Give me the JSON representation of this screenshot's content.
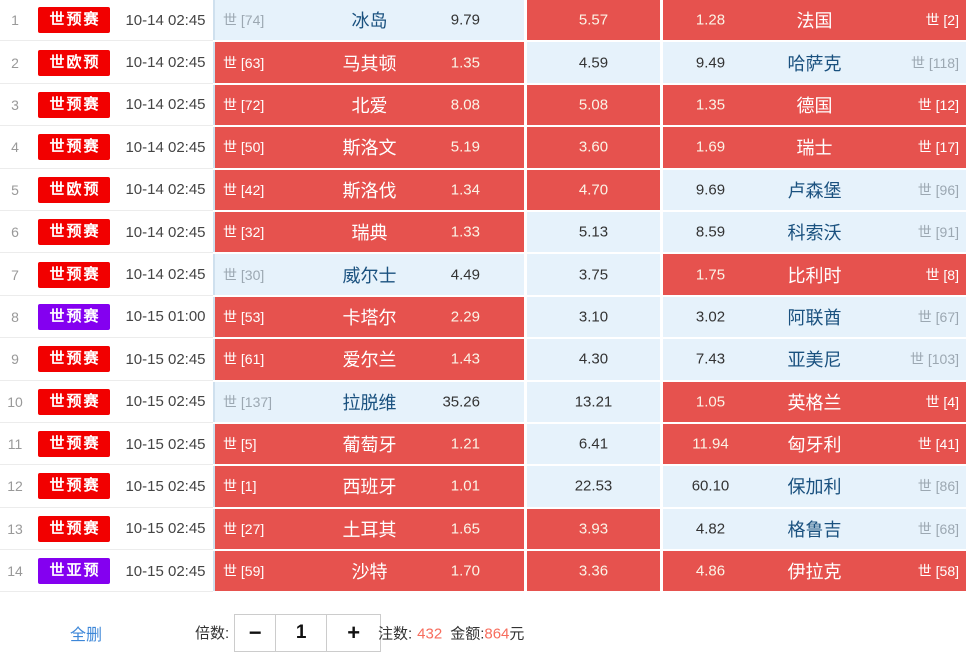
{
  "ui_colors": {
    "selected_cell_red": "#e6524e",
    "unselected_cell_blue": "#e6f2fb",
    "league_badge_red": "#f20000",
    "league_badge_purple": "#8400f0",
    "team_name_blue": "#1a517f",
    "rank_gray": "#9ca8b2",
    "summary_highlight_red": "#f76c5c",
    "link_blue": "#3d87d8"
  },
  "table": {
    "rows": [
      {
        "num": "1",
        "league": "世预赛",
        "time": "10-14 02:45",
        "home": {
          "rank": "世 [74]",
          "team": "冰岛",
          "odds": "9.79",
          "selected": false
        },
        "draw": {
          "odds": "5.57",
          "selected": true
        },
        "away": {
          "odds": "1.28",
          "team": "法国",
          "rank": "世 [2]",
          "selected": true
        }
      },
      {
        "num": "2",
        "league": "世欧预",
        "time": "10-14 02:45",
        "home": {
          "rank": "世 [63]",
          "team": "马其顿",
          "odds": "1.35",
          "selected": true
        },
        "draw": {
          "odds": "4.59",
          "selected": false
        },
        "away": {
          "odds": "9.49",
          "team": "哈萨克",
          "rank": "世 [118]",
          "selected": false
        }
      },
      {
        "num": "3",
        "league": "世预赛",
        "time": "10-14 02:45",
        "home": {
          "rank": "世 [72]",
          "team": "北爱",
          "odds": "8.08",
          "selected": true
        },
        "draw": {
          "odds": "5.08",
          "selected": true
        },
        "away": {
          "odds": "1.35",
          "team": "德国",
          "rank": "世 [12]",
          "selected": true
        }
      },
      {
        "num": "4",
        "league": "世预赛",
        "time": "10-14 02:45",
        "home": {
          "rank": "世 [50]",
          "team": "斯洛文",
          "odds": "5.19",
          "selected": true
        },
        "draw": {
          "odds": "3.60",
          "selected": true
        },
        "away": {
          "odds": "1.69",
          "team": "瑞士",
          "rank": "世 [17]",
          "selected": true
        }
      },
      {
        "num": "5",
        "league": "世欧预",
        "time": "10-14 02:45",
        "home": {
          "rank": "世 [42]",
          "team": "斯洛伐",
          "odds": "1.34",
          "selected": true
        },
        "draw": {
          "odds": "4.70",
          "selected": true
        },
        "away": {
          "odds": "9.69",
          "team": "卢森堡",
          "rank": "世 [96]",
          "selected": false
        }
      },
      {
        "num": "6",
        "league": "世预赛",
        "time": "10-14 02:45",
        "home": {
          "rank": "世 [32]",
          "team": "瑞典",
          "odds": "1.33",
          "selected": true
        },
        "draw": {
          "odds": "5.13",
          "selected": false
        },
        "away": {
          "odds": "8.59",
          "team": "科索沃",
          "rank": "世 [91]",
          "selected": false
        }
      },
      {
        "num": "7",
        "league": "世预赛",
        "time": "10-14 02:45",
        "home": {
          "rank": "世 [30]",
          "team": "威尔士",
          "odds": "4.49",
          "selected": false
        },
        "draw": {
          "odds": "3.75",
          "selected": false
        },
        "away": {
          "odds": "1.75",
          "team": "比利时",
          "rank": "世 [8]",
          "selected": true
        }
      },
      {
        "num": "8",
        "league": "世预赛",
        "league_purple": true,
        "time": "10-15 01:00",
        "home": {
          "rank": "世 [53]",
          "team": "卡塔尔",
          "odds": "2.29",
          "selected": true
        },
        "draw": {
          "odds": "3.10",
          "selected": false
        },
        "away": {
          "odds": "3.02",
          "team": "阿联酋",
          "rank": "世 [67]",
          "selected": false
        }
      },
      {
        "num": "9",
        "league": "世预赛",
        "time": "10-15 02:45",
        "home": {
          "rank": "世 [61]",
          "team": "爱尔兰",
          "odds": "1.43",
          "selected": true
        },
        "draw": {
          "odds": "4.30",
          "selected": false
        },
        "away": {
          "odds": "7.43",
          "team": "亚美尼",
          "rank": "世 [103]",
          "selected": false
        }
      },
      {
        "num": "10",
        "league": "世预赛",
        "time": "10-15 02:45",
        "home": {
          "rank": "世 [137]",
          "team": "拉脱维",
          "odds": "35.26",
          "selected": false
        },
        "draw": {
          "odds": "13.21",
          "selected": false
        },
        "away": {
          "odds": "1.05",
          "team": "英格兰",
          "rank": "世 [4]",
          "selected": true
        }
      },
      {
        "num": "11",
        "league": "世预赛",
        "time": "10-15 02:45",
        "home": {
          "rank": "世 [5]",
          "team": "葡萄牙",
          "odds": "1.21",
          "selected": true
        },
        "draw": {
          "odds": "6.41",
          "selected": false
        },
        "away": {
          "odds": "11.94",
          "team": "匈牙利",
          "rank": "世 [41]",
          "selected": true
        }
      },
      {
        "num": "12",
        "league": "世预赛",
        "time": "10-15 02:45",
        "home": {
          "rank": "世 [1]",
          "team": "西班牙",
          "odds": "1.01",
          "selected": true
        },
        "draw": {
          "odds": "22.53",
          "selected": false
        },
        "away": {
          "odds": "60.10",
          "team": "保加利",
          "rank": "世 [86]",
          "selected": false
        }
      },
      {
        "num": "13",
        "league": "世预赛",
        "time": "10-15 02:45",
        "home": {
          "rank": "世 [27]",
          "team": "土耳其",
          "odds": "1.65",
          "selected": true
        },
        "draw": {
          "odds": "3.93",
          "selected": true
        },
        "away": {
          "odds": "4.82",
          "team": "格鲁吉",
          "rank": "世 [68]",
          "selected": false
        }
      },
      {
        "num": "14",
        "league": "世亚预",
        "league_purple": true,
        "time": "10-15 02:45",
        "home": {
          "rank": "世 [59]",
          "team": "沙特",
          "odds": "1.70",
          "selected": true
        },
        "draw": {
          "odds": "3.36",
          "selected": true
        },
        "away": {
          "odds": "4.86",
          "team": "伊拉克",
          "rank": "世 [58]",
          "selected": true
        }
      }
    ]
  },
  "footer": {
    "delete_all": "全删",
    "multiplier_label": "倍数:",
    "minus_label": "−",
    "multiplier_value": "1",
    "plus_label": "+",
    "bets_label": "注数:",
    "bets_value": "432",
    "amount_label": "金额:",
    "amount_value": "864",
    "amount_unit": "元"
  }
}
